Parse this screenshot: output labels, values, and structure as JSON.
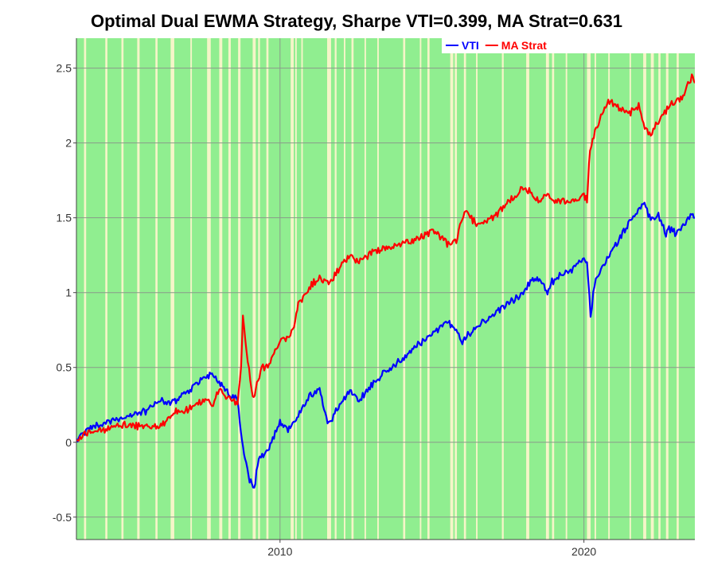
{
  "chart_data": {
    "type": "line",
    "title": "Optimal Dual EWMA Strategy, Sharpe VTI=0.399, MA Strat=0.631",
    "xlabel": "",
    "ylabel": "",
    "x_range": [
      2003.3,
      2023.65
    ],
    "ylim": [
      -0.65,
      2.7
    ],
    "x_ticks": [
      2010,
      2020
    ],
    "x_tick_labels": [
      "2010",
      "2020"
    ],
    "y_ticks": [
      -0.5,
      0,
      0.5,
      1,
      1.5,
      2,
      2.5
    ],
    "y_tick_labels": [
      "-0.5",
      "0",
      "0.5",
      "1",
      "1.5",
      "2",
      "2.5"
    ],
    "grid": true,
    "legend_position": "top-right",
    "background": {
      "invested_color": "#90ee90",
      "flat_color": "#f5f5c8",
      "flat_periods": [
        [
          2003.55,
          2003.62
        ],
        [
          2004.25,
          2004.32
        ],
        [
          2004.78,
          2004.85
        ],
        [
          2005.3,
          2005.38
        ],
        [
          2005.9,
          2005.97
        ],
        [
          2006.4,
          2006.52
        ],
        [
          2007.05,
          2007.1
        ],
        [
          2007.6,
          2007.72
        ],
        [
          2008.0,
          2008.1
        ],
        [
          2008.3,
          2008.38
        ],
        [
          2008.62,
          2008.7
        ],
        [
          2009.1,
          2009.2
        ],
        [
          2009.28,
          2009.34
        ],
        [
          2009.55,
          2009.62
        ],
        [
          2010.35,
          2010.45
        ],
        [
          2010.5,
          2010.55
        ],
        [
          2010.7,
          2010.75
        ],
        [
          2011.55,
          2011.68
        ],
        [
          2011.8,
          2011.86
        ],
        [
          2012.1,
          2012.15
        ],
        [
          2012.35,
          2012.42
        ],
        [
          2012.78,
          2012.83
        ],
        [
          2013.2,
          2013.25
        ],
        [
          2014.05,
          2014.12
        ],
        [
          2014.6,
          2014.65
        ],
        [
          2014.85,
          2014.92
        ],
        [
          2015.6,
          2015.7
        ],
        [
          2015.75,
          2015.82
        ],
        [
          2016.05,
          2016.12
        ],
        [
          2016.45,
          2016.5
        ],
        [
          2017.3,
          2017.36
        ],
        [
          2018.1,
          2018.2
        ],
        [
          2018.75,
          2018.85
        ],
        [
          2018.95,
          2019.02
        ],
        [
          2019.4,
          2019.45
        ],
        [
          2020.1,
          2020.22
        ],
        [
          2020.35,
          2020.4
        ],
        [
          2020.8,
          2020.85
        ],
        [
          2021.5,
          2021.55
        ],
        [
          2021.95,
          2022.05
        ],
        [
          2022.2,
          2022.3
        ],
        [
          2022.45,
          2022.52
        ],
        [
          2022.7,
          2022.78
        ],
        [
          2023.05,
          2023.12
        ]
      ]
    },
    "series": [
      {
        "name": "VTI",
        "color": "#0000ff",
        "x": [
          2003.3,
          2003.5,
          2004.0,
          2004.5,
          2005.0,
          2005.5,
          2006.0,
          2006.5,
          2007.0,
          2007.5,
          2007.8,
          2008.0,
          2008.3,
          2008.6,
          2008.75,
          2008.85,
          2009.0,
          2009.15,
          2009.3,
          2009.6,
          2010.0,
          2010.3,
          2010.6,
          2011.0,
          2011.3,
          2011.6,
          2011.8,
          2012.0,
          2012.3,
          2012.6,
          2013.0,
          2013.5,
          2014.0,
          2014.5,
          2015.0,
          2015.5,
          2015.8,
          2016.0,
          2016.1,
          2016.5,
          2017.0,
          2017.5,
          2018.0,
          2018.2,
          2018.5,
          2018.8,
          2018.95,
          2019.2,
          2019.6,
          2020.0,
          2020.1,
          2020.22,
          2020.35,
          2020.6,
          2021.0,
          2021.5,
          2021.95,
          2022.2,
          2022.45,
          2022.7,
          2022.8,
          2023.0,
          2023.3,
          2023.55,
          2023.65
        ],
        "values": [
          0.0,
          0.06,
          0.12,
          0.15,
          0.17,
          0.2,
          0.27,
          0.27,
          0.35,
          0.43,
          0.46,
          0.4,
          0.33,
          0.28,
          0.0,
          -0.12,
          -0.25,
          -0.32,
          -0.1,
          -0.05,
          0.13,
          0.08,
          0.18,
          0.32,
          0.35,
          0.12,
          0.2,
          0.25,
          0.35,
          0.28,
          0.38,
          0.48,
          0.55,
          0.65,
          0.72,
          0.8,
          0.75,
          0.67,
          0.7,
          0.77,
          0.85,
          0.93,
          1.0,
          1.07,
          1.1,
          1.0,
          1.07,
          1.12,
          1.15,
          1.22,
          1.2,
          0.85,
          1.05,
          1.18,
          1.3,
          1.47,
          1.6,
          1.48,
          1.52,
          1.38,
          1.43,
          1.4,
          1.45,
          1.53,
          1.5
        ]
      },
      {
        "name": "MA Strat",
        "color": "#ff0000",
        "x": [
          2003.3,
          2003.5,
          2004.0,
          2004.5,
          2005.0,
          2005.5,
          2006.0,
          2006.5,
          2007.0,
          2007.5,
          2007.8,
          2008.0,
          2008.3,
          2008.6,
          2008.72,
          2008.78,
          2008.9,
          2009.1,
          2009.2,
          2009.4,
          2009.6,
          2010.0,
          2010.3,
          2010.5,
          2010.6,
          2011.0,
          2011.3,
          2011.6,
          2011.8,
          2012.0,
          2012.3,
          2012.6,
          2013.0,
          2013.5,
          2014.0,
          2014.5,
          2015.0,
          2015.5,
          2015.8,
          2016.0,
          2016.1,
          2016.5,
          2017.0,
          2017.5,
          2018.0,
          2018.2,
          2018.5,
          2018.8,
          2019.0,
          2019.3,
          2019.6,
          2020.0,
          2020.1,
          2020.2,
          2020.25,
          2020.4,
          2020.8,
          2021.0,
          2021.5,
          2021.8,
          2022.0,
          2022.2,
          2022.45,
          2022.7,
          2023.0,
          2023.3,
          2023.55,
          2023.65
        ],
        "values": [
          0.0,
          0.05,
          0.08,
          0.1,
          0.12,
          0.1,
          0.1,
          0.2,
          0.22,
          0.28,
          0.25,
          0.35,
          0.3,
          0.25,
          0.5,
          0.85,
          0.6,
          0.3,
          0.35,
          0.5,
          0.5,
          0.68,
          0.7,
          0.8,
          0.92,
          1.05,
          1.1,
          1.05,
          1.12,
          1.17,
          1.25,
          1.2,
          1.27,
          1.3,
          1.33,
          1.35,
          1.42,
          1.33,
          1.35,
          1.5,
          1.55,
          1.45,
          1.5,
          1.6,
          1.7,
          1.68,
          1.62,
          1.65,
          1.6,
          1.62,
          1.6,
          1.65,
          1.62,
          1.95,
          2.0,
          2.1,
          2.28,
          2.25,
          2.2,
          2.25,
          2.1,
          2.05,
          2.15,
          2.22,
          2.28,
          2.32,
          2.45,
          2.4
        ]
      }
    ]
  }
}
